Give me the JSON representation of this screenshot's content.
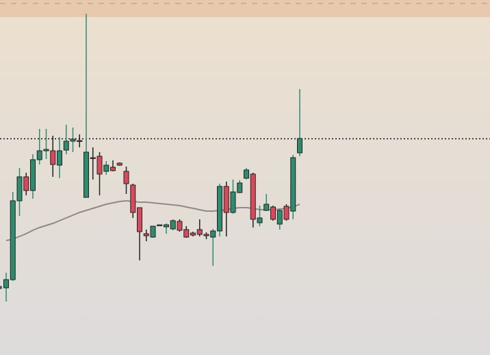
{
  "chart_data": {
    "type": "candlestick",
    "open": [
      98,
      110,
      225,
      260,
      240,
      285,
      298,
      298,
      277,
      299,
      312,
      313,
      230,
      288,
      290,
      268,
      274,
      280,
      268,
      248,
      215,
      177,
      172,
      189,
      187,
      184,
      195,
      183,
      178,
      183,
      176,
      172,
      181,
      246,
      208,
      237,
      258,
      264,
      193,
      211,
      216,
      191,
      217,
      210,
      295
    ],
    "high": [
      120,
      238,
      273,
      266,
      293,
      330,
      330,
      320,
      318,
      336,
      332,
      322,
      498,
      303,
      296,
      283,
      284,
      281,
      275,
      250,
      215,
      183,
      188,
      190,
      192,
      198,
      198,
      188,
      180,
      198,
      179,
      184,
      250,
      253,
      256,
      255,
      273,
      266,
      218,
      235,
      218,
      213,
      220,
      292,
      388
    ],
    "low": [
      78,
      108,
      203,
      233,
      228,
      278,
      286,
      260,
      258,
      293,
      296,
      303,
      230,
      256,
      233,
      263,
      268,
      276,
      235,
      200,
      138,
      166,
      171,
      188,
      177,
      182,
      180,
      171,
      173,
      173,
      169,
      130,
      173,
      173,
      206,
      236,
      256,
      186,
      188,
      210,
      196,
      183,
      196,
      198,
      290
    ],
    "close": [
      110,
      225,
      260,
      240,
      285,
      298,
      300,
      278,
      298,
      312,
      315,
      312,
      296,
      287,
      264,
      277,
      269,
      277,
      250,
      208,
      180,
      174,
      188,
      190,
      190,
      196,
      182,
      172,
      175,
      176,
      174,
      181,
      246,
      208,
      238,
      251,
      270,
      198,
      200,
      220,
      198,
      211,
      198,
      288,
      316
    ],
    "moving_average": {
      "color": "#8f8a84",
      "values": [
        167,
        169,
        173,
        177,
        182,
        186,
        189,
        192,
        196,
        200,
        204,
        208,
        211,
        214,
        217,
        220,
        222,
        224,
        225,
        224,
        223,
        223,
        222,
        221,
        220,
        219,
        218,
        216,
        214,
        212,
        210,
        210,
        211,
        212,
        214,
        215,
        215,
        214,
        212,
        212,
        212,
        213,
        214,
        216,
        220
      ]
    },
    "price_line": 316,
    "up_color": "#2f8a6e",
    "down_color": "#d64a5b",
    "ylim": [
      0,
      518
    ]
  }
}
